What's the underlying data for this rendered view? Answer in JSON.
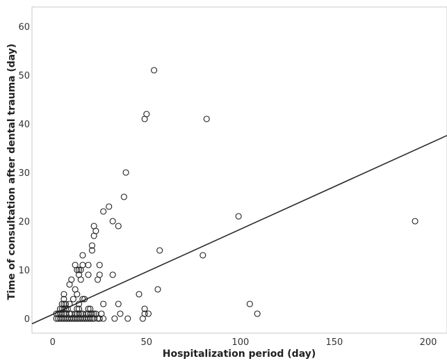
{
  "chart_data": {
    "type": "scatter",
    "xlabel": "Hospitalization period (day)",
    "ylabel": "Time of consultation after dental trauma (day)",
    "xlim": [
      -11,
      210
    ],
    "ylim": [
      -3,
      64
    ],
    "x_ticks": [
      0,
      50,
      100,
      150,
      200
    ],
    "y_ticks": [
      0,
      10,
      20,
      30,
      40,
      50,
      60
    ],
    "x_tick_labels": [
      "0",
      "50",
      "100",
      "150",
      "200"
    ],
    "y_tick_labels": [
      "0",
      "10",
      "20",
      "30",
      "40",
      "50",
      "60"
    ],
    "grid": false,
    "legend": "none",
    "marker": "open-circle",
    "fit_line": {
      "intercept": 0.85,
      "slope": 0.175
    },
    "points": [
      [
        2,
        0
      ],
      [
        3,
        0
      ],
      [
        4,
        0
      ],
      [
        5,
        0
      ],
      [
        6,
        0
      ],
      [
        7,
        0
      ],
      [
        8,
        0
      ],
      [
        9,
        0
      ],
      [
        10,
        0
      ],
      [
        11,
        0
      ],
      [
        12,
        0
      ],
      [
        13,
        0
      ],
      [
        14,
        0
      ],
      [
        15,
        0
      ],
      [
        16,
        0
      ],
      [
        17,
        0
      ],
      [
        18,
        0
      ],
      [
        19,
        0
      ],
      [
        20,
        0
      ],
      [
        21,
        0
      ],
      [
        22,
        0
      ],
      [
        24,
        0
      ],
      [
        25,
        0
      ],
      [
        27,
        0
      ],
      [
        2,
        1
      ],
      [
        3,
        1
      ],
      [
        4,
        1
      ],
      [
        5,
        1
      ],
      [
        6,
        1
      ],
      [
        7,
        1
      ],
      [
        9,
        1
      ],
      [
        10,
        1
      ],
      [
        12,
        1
      ],
      [
        13,
        1
      ],
      [
        14,
        1
      ],
      [
        15,
        1
      ],
      [
        16,
        1
      ],
      [
        18,
        1
      ],
      [
        19,
        1
      ],
      [
        20,
        1
      ],
      [
        21,
        1
      ],
      [
        22,
        1
      ],
      [
        23,
        1
      ],
      [
        26,
        1
      ],
      [
        4,
        2
      ],
      [
        5,
        2
      ],
      [
        6,
        2
      ],
      [
        7,
        2
      ],
      [
        8,
        2
      ],
      [
        13,
        2
      ],
      [
        14,
        2
      ],
      [
        19,
        2
      ],
      [
        20,
        2
      ],
      [
        5,
        3
      ],
      [
        6,
        3
      ],
      [
        7,
        3
      ],
      [
        9,
        3
      ],
      [
        14,
        3
      ],
      [
        27,
        3
      ],
      [
        6,
        4
      ],
      [
        11,
        4
      ],
      [
        16,
        4
      ],
      [
        17,
        4
      ],
      [
        6,
        5
      ],
      [
        13,
        5
      ],
      [
        12,
        6
      ],
      [
        9,
        7
      ],
      [
        10,
        8
      ],
      [
        15,
        8
      ],
      [
        24,
        8
      ],
      [
        14,
        9
      ],
      [
        19,
        9
      ],
      [
        25,
        9
      ],
      [
        32,
        9
      ],
      [
        13,
        10
      ],
      [
        14,
        10
      ],
      [
        15,
        10
      ],
      [
        12,
        11
      ],
      [
        16,
        11
      ],
      [
        19,
        11
      ],
      [
        25,
        11
      ],
      [
        16,
        13
      ],
      [
        21,
        14
      ],
      [
        21,
        15
      ],
      [
        22,
        17
      ],
      [
        23,
        18
      ],
      [
        22,
        19
      ],
      [
        35,
        19
      ],
      [
        32,
        20
      ],
      [
        27,
        22
      ],
      [
        30,
        23
      ],
      [
        38,
        25
      ],
      [
        39,
        30
      ],
      [
        49,
        41
      ],
      [
        50,
        42
      ],
      [
        54,
        51
      ],
      [
        33,
        0
      ],
      [
        40,
        0
      ],
      [
        48,
        0
      ],
      [
        36,
        1
      ],
      [
        49,
        1
      ],
      [
        51,
        1
      ],
      [
        49,
        2
      ],
      [
        35,
        3
      ],
      [
        46,
        5
      ],
      [
        56,
        6
      ],
      [
        57,
        14
      ],
      [
        80,
        13
      ],
      [
        82,
        41
      ],
      [
        99,
        21
      ],
      [
        105,
        3
      ],
      [
        109,
        1
      ],
      [
        193,
        20
      ]
    ]
  }
}
